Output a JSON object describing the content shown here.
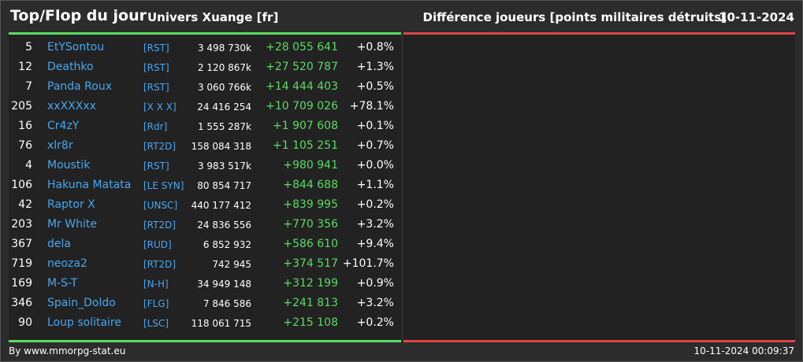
{
  "header": {
    "title": "Top/Flop du jour",
    "universe": "Univers Xuange [fr]",
    "metric": "Différence joueurs [points militaires détruits]",
    "date": "10-11-2024"
  },
  "colors": {
    "background": "#2c2c2c",
    "panel": "#222222",
    "top_bar": "#5bdc63",
    "flop_bar": "#e04545",
    "link": "#47a7f0",
    "positive": "#5bdc63"
  },
  "top_rows": [
    {
      "rank": "5",
      "name": "EtYSontou",
      "alliance": "[RST]",
      "points": "3 498 730k",
      "diff": "+28 055 641",
      "pct": "+0.8%"
    },
    {
      "rank": "12",
      "name": "Deathko",
      "alliance": "[RST]",
      "points": "2 120 867k",
      "diff": "+27 520 787",
      "pct": "+1.3%"
    },
    {
      "rank": "7",
      "name": "Panda Roux",
      "alliance": "[RST]",
      "points": "3 060 766k",
      "diff": "+14 444 403",
      "pct": "+0.5%"
    },
    {
      "rank": "205",
      "name": "xxXXXxx",
      "alliance": "[X X X]",
      "points": "24 416 254",
      "diff": "+10 709 026",
      "pct": "+78.1%"
    },
    {
      "rank": "16",
      "name": "Cr4zY",
      "alliance": "[Rdr]",
      "points": "1 555 287k",
      "diff": "+1 907 608",
      "pct": "+0.1%"
    },
    {
      "rank": "76",
      "name": "xlr8r",
      "alliance": "[RT2D]",
      "points": "158 084 318",
      "diff": "+1 105 251",
      "pct": "+0.7%"
    },
    {
      "rank": "4",
      "name": "Moustik",
      "alliance": "[RST]",
      "points": "3 983 517k",
      "diff": "+980 941",
      "pct": "+0.0%"
    },
    {
      "rank": "106",
      "name": "Hakuna Matata",
      "alliance": "[LE SYN]",
      "points": "80 854 717",
      "diff": "+844 688",
      "pct": "+1.1%"
    },
    {
      "rank": "42",
      "name": "Raptor X",
      "alliance": "[UNSC]",
      "points": "440 177 412",
      "diff": "+839 995",
      "pct": "+0.2%"
    },
    {
      "rank": "203",
      "name": "Mr White",
      "alliance": "[RT2D]",
      "points": "24 836 556",
      "diff": "+770 356",
      "pct": "+3.2%"
    },
    {
      "rank": "367",
      "name": "dela",
      "alliance": "[RUD]",
      "points": "6 852 932",
      "diff": "+586 610",
      "pct": "+9.4%"
    },
    {
      "rank": "719",
      "name": "neoza2",
      "alliance": "[RT2D]",
      "points": "742 945",
      "diff": "+374 517",
      "pct": "+101.7%"
    },
    {
      "rank": "169",
      "name": "M-S-T",
      "alliance": "[N-H]",
      "points": "34 949 148",
      "diff": "+312 199",
      "pct": "+0.9%"
    },
    {
      "rank": "346",
      "name": "Spain_Doldo",
      "alliance": "[FLG]",
      "points": "7 846 586",
      "diff": "+241 813",
      "pct": "+3.2%"
    },
    {
      "rank": "90",
      "name": "Loup solitaire",
      "alliance": "[LSC]",
      "points": "118 061 715",
      "diff": "+215 108",
      "pct": "+0.2%"
    }
  ],
  "footer": {
    "credit": "By www.mmorpg-stat.eu",
    "timestamp": "10-11-2024 00:09:37"
  }
}
